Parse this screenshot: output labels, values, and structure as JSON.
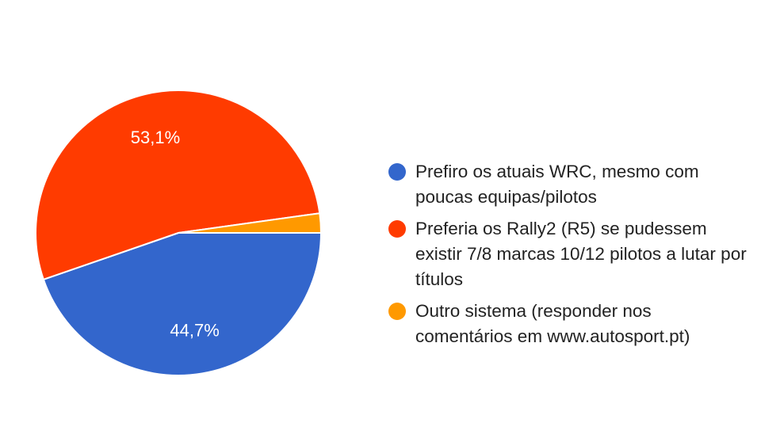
{
  "chart_data": {
    "type": "pie",
    "title": "",
    "slices": [
      {
        "label": "Prefiro os atuais WRC, mesmo com poucas equipas/pilotos",
        "value": 44.7,
        "display": "44,7%",
        "color": "#3366cc"
      },
      {
        "label": "Preferia os Rally2 (R5) se pudessem existir 7/8 marcas 10/12 pilotos a lutar por títulos",
        "value": 53.1,
        "display": "53,1%",
        "color": "#ff3b00"
      },
      {
        "label": "Outro sistema (responder nos comentários em www.autosport.pt)",
        "value": 2.2,
        "display": "",
        "color": "#ff9900"
      }
    ],
    "start_angle_deg": 90,
    "direction": "clockwise",
    "legend_position": "right"
  }
}
